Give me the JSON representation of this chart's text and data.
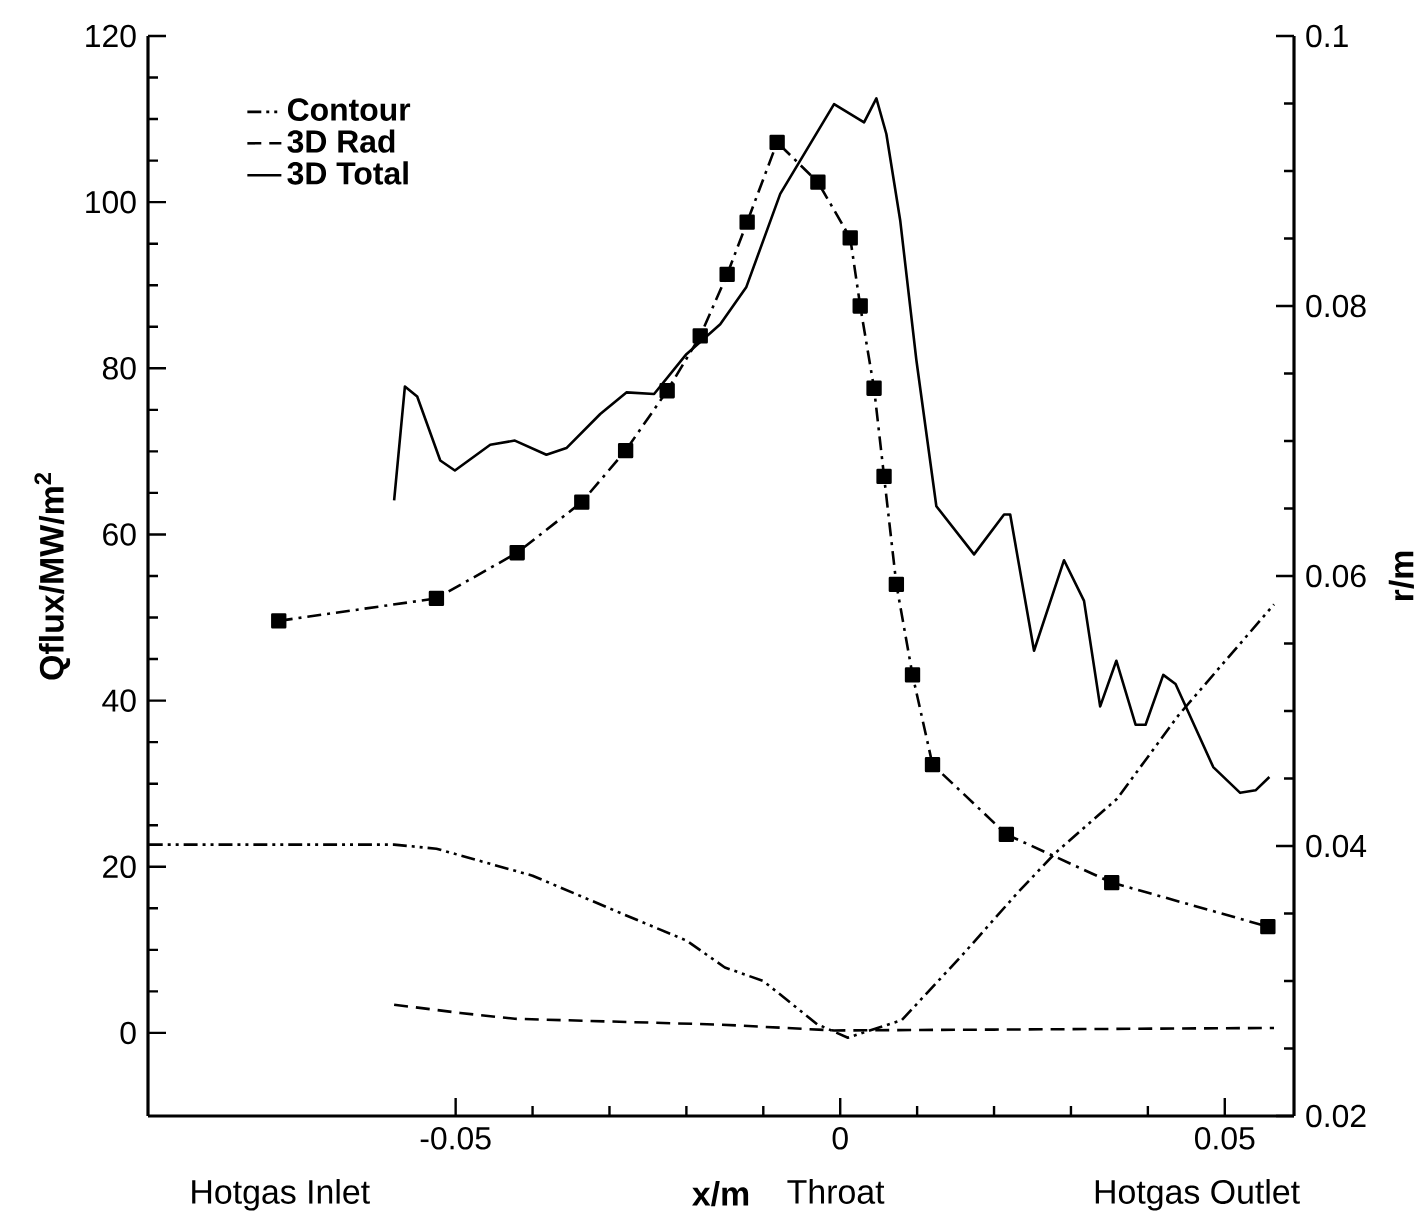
{
  "chart_data": {
    "type": "line",
    "xlabel": "x/m",
    "ylabel": "Qflux/MW/m$^{2}$",
    "y2label": "r/m",
    "xlim": [
      -0.09,
      0.059
    ],
    "xticks": [
      -0.05,
      0,
      0.05
    ],
    "ylim": [
      -10,
      120
    ],
    "yticks": [
      0,
      20,
      40,
      60,
      80,
      100,
      120
    ],
    "y2lim": [
      0.02,
      0.1
    ],
    "y2ticks": [
      0.02,
      0.04,
      0.06,
      0.08,
      0.1
    ],
    "legend": "top left",
    "annotations": [
      "Hotgas Inlet",
      "Throat",
      "Hotgas Outlet"
    ],
    "series": [
      {
        "name": "Contour",
        "color": "#000000",
        "axis": "y2",
        "line_style": "dashdotdot",
        "marker": "none",
        "x": [
          -0.0899,
          -0.058,
          -0.0525,
          -0.04,
          -0.028,
          -0.02,
          -0.015,
          -0.01,
          -0.003,
          0.001,
          0.008,
          0.016,
          0.023,
          0.028,
          0.036,
          0.044,
          0.0564
        ],
        "values": [
          0.0401,
          0.0401,
          0.0398,
          0.0378,
          0.0349,
          0.033,
          0.031,
          0.03,
          0.0268,
          0.0258,
          0.0271,
          0.032,
          0.0365,
          0.0395,
          0.0435,
          0.0497,
          0.0579
        ]
      },
      {
        "color": "#000000",
        "axis": "y",
        "line_style": "dashdot",
        "marker": "square",
        "x": [
          -0.073,
          -0.0525,
          -0.042,
          -0.0336,
          -0.0279,
          -0.0225,
          -0.0182,
          -0.0147,
          -0.0121,
          -0.0082,
          -0.0029,
          0.0013,
          0.0026,
          0.0044,
          0.0057,
          0.0073,
          0.0094,
          0.012,
          0.0216,
          0.0353,
          0.0556
        ],
        "values": [
          49.6,
          52.3,
          57.8,
          63.9,
          70.1,
          77.3,
          83.9,
          91.3,
          97.6,
          107.2,
          102.4,
          95.7,
          87.5,
          77.6,
          67,
          54,
          43.1,
          32.3,
          23.9,
          18.1,
          12.8
        ]
      },
      {
        "name": "3D Rad",
        "color": "#000000",
        "axis": "y",
        "line_style": "dashed",
        "marker": "none",
        "x": [
          -0.058,
          -0.0494,
          -0.0423,
          -0.0156,
          -0.0008,
          0.02,
          0.0564
        ],
        "values": [
          3.4,
          2.4,
          1.7,
          1.0,
          0.3,
          0.4,
          0.6
        ]
      },
      {
        "name": "3D Total",
        "color": "#000000",
        "axis": "y",
        "line_style": "solid",
        "marker": "none",
        "x": [
          -0.058,
          -0.0566,
          -0.055,
          -0.052,
          -0.0501,
          -0.0455,
          -0.0423,
          -0.0382,
          -0.0356,
          -0.0312,
          -0.0278,
          -0.0242,
          -0.02,
          -0.0156,
          -0.0122,
          -0.0078,
          -0.0008,
          0.0031,
          0.0047,
          0.006,
          0.0078,
          0.0099,
          0.0125,
          0.0174,
          0.0213,
          0.0221,
          0.0252,
          0.0291,
          0.0317,
          0.0338,
          0.0359,
          0.0384,
          0.0397,
          0.042,
          0.0436,
          0.0485,
          0.052,
          0.054,
          0.0558
        ],
        "values": [
          64.1,
          77.8,
          76.6,
          68.9,
          67.7,
          70.8,
          71.3,
          69.6,
          70.4,
          74.5,
          77.1,
          76.9,
          81.7,
          85.3,
          89.8,
          101,
          111.8,
          109.6,
          112.5,
          108.2,
          97.8,
          81,
          63.4,
          57.6,
          62.4,
          62.4,
          46,
          56.9,
          52,
          39.3,
          44.8,
          37.1,
          37.1,
          43.1,
          42,
          32,
          28.9,
          29.2,
          30.8
        ]
      }
    ]
  }
}
